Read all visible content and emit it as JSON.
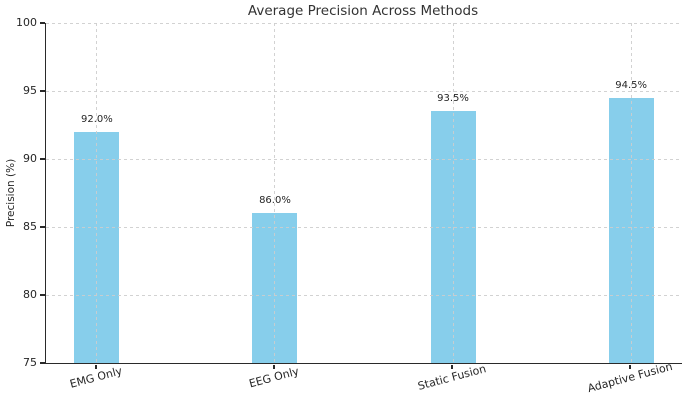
{
  "chart_data": {
    "type": "bar",
    "title": "Average Precision Across Methods",
    "ylabel": "Precision (%)",
    "xlabel": "",
    "categories": [
      "EMG Only",
      "EEG Only",
      "Static Fusion",
      "Adaptive Fusion"
    ],
    "values": [
      92.0,
      86.0,
      93.5,
      94.5
    ],
    "value_labels": [
      "92.0%",
      "86.0%",
      "93.5%",
      "94.5%"
    ],
    "ylim": [
      75,
      100
    ],
    "yticks": [
      75,
      80,
      85,
      90,
      95,
      100
    ],
    "grid": {
      "horizontal": true,
      "vertical": true,
      "style": "dashed",
      "color": "#cdcdcd"
    },
    "bar_color": "#87CEEB",
    "x_tick_rotation_deg": 15,
    "legend_position": "none"
  }
}
